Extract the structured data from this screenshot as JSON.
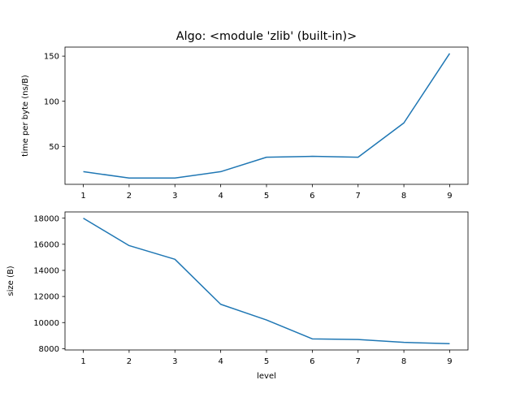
{
  "figure": {
    "title": "Algo: <module 'zlib' (built-in)>"
  },
  "chart_data": [
    {
      "type": "line",
      "title": "Algo: <module 'zlib' (built-in)>",
      "xlabel": "",
      "ylabel": "time per byte (ns/B)",
      "x": [
        1,
        2,
        3,
        4,
        5,
        6,
        7,
        8,
        9
      ],
      "y": [
        22,
        15,
        15,
        22,
        38,
        39,
        38,
        76,
        153
      ],
      "xticks": [
        1,
        2,
        3,
        4,
        5,
        6,
        7,
        8,
        9
      ],
      "yticks": [
        50,
        100,
        150
      ],
      "xlim": [
        0.6,
        9.4
      ],
      "ylim": [
        8,
        160
      ],
      "color": "#1f77b4",
      "grid": false
    },
    {
      "type": "line",
      "title": "",
      "xlabel": "level",
      "ylabel": "size (B)",
      "x": [
        1,
        2,
        3,
        4,
        5,
        6,
        7,
        8,
        9
      ],
      "y": [
        18000,
        15900,
        14850,
        11400,
        10200,
        8750,
        8700,
        8480,
        8380
      ],
      "xticks": [
        1,
        2,
        3,
        4,
        5,
        6,
        7,
        8,
        9
      ],
      "yticks": [
        8000,
        10000,
        12000,
        14000,
        16000,
        18000
      ],
      "xlim": [
        0.6,
        9.4
      ],
      "ylim": [
        7900,
        18480
      ],
      "color": "#1f77b4",
      "grid": false
    }
  ]
}
